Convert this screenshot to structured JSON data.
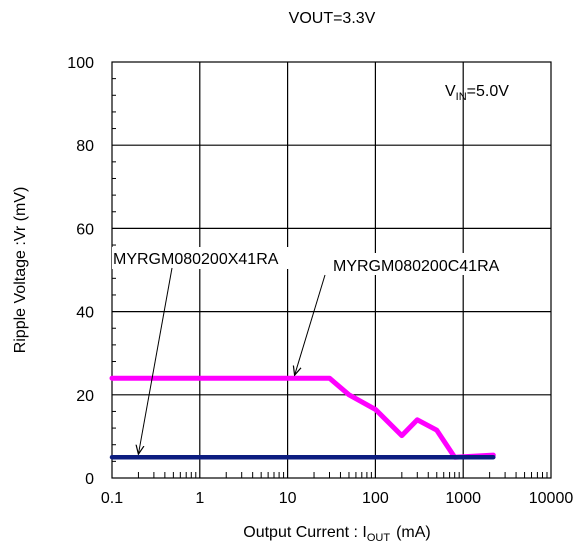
{
  "chart_data": {
    "type": "line",
    "title": "VOUT=3.3V",
    "xlabel": {
      "main": "Output Current : I",
      "sub": "OUT",
      "unit": "(mA)"
    },
    "ylabel": "Ripple Voltage :Vr (mV)",
    "xscale": "log",
    "xlim": [
      0.1,
      10000
    ],
    "ylim": [
      0,
      100
    ],
    "x_ticks": [
      "0.1",
      "1",
      "10",
      "100",
      "1000",
      "10000"
    ],
    "y_ticks": [
      "0",
      "20",
      "40",
      "60",
      "80",
      "100"
    ],
    "grid": true,
    "annotation": {
      "main": "V",
      "sub": "IN",
      "rest": "=5.0V"
    },
    "series": [
      {
        "name": "MYRGM080200C41RA",
        "color": "#ff00ff",
        "x": [
          0.1,
          30,
          50,
          100,
          200,
          300,
          500,
          800,
          2200
        ],
        "y": [
          24,
          24,
          20,
          16.5,
          10.2,
          14,
          11.5,
          5,
          5.5
        ]
      },
      {
        "name": "MYRGM080200X41RA",
        "color": "#0c1d80",
        "x": [
          0.1,
          2200
        ],
        "y": [
          5,
          5
        ]
      }
    ],
    "callouts": [
      {
        "series": "MYRGM080200X41RA",
        "x": 0.2,
        "y": 5
      },
      {
        "series": "MYRGM080200C41RA",
        "x": 12,
        "y": 24
      }
    ]
  }
}
